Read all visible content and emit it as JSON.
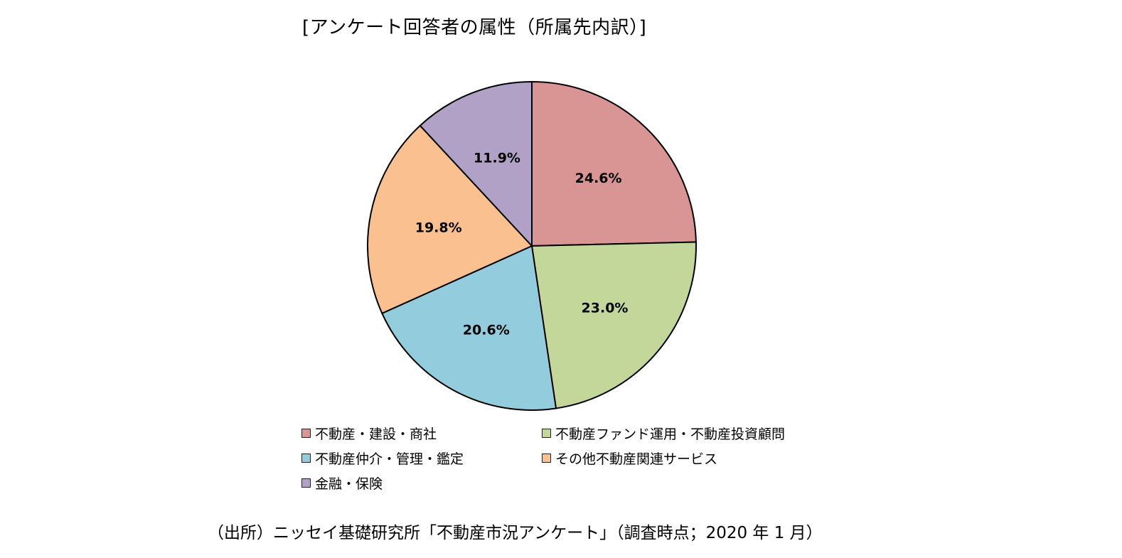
{
  "title": "[アンケート回答者の属性（所属先内訳）]",
  "source": "（出所）ニッセイ基礎研究所「不動産市況アンケート」（調査時点；2020 年 1 月）",
  "chart_data": {
    "type": "pie",
    "title": "[アンケート回答者の属性（所属先内訳）]",
    "slices": [
      {
        "name": "不動産・建設・商社",
        "value": 24.6,
        "label": "24.6%",
        "color": "#d99594"
      },
      {
        "name": "不動産ファンド運用・不動産投資顧問",
        "value": 23.0,
        "label": "23.0%",
        "color": "#c4d79b"
      },
      {
        "name": "不動産仲介・管理・鑑定",
        "value": 20.6,
        "label": "20.6%",
        "color": "#93cddd"
      },
      {
        "name": "その他不動産関連サービス",
        "value": 19.8,
        "label": "19.8%",
        "color": "#fac090"
      },
      {
        "name": "金融・保険",
        "value": 11.9,
        "label": "11.9%",
        "color": "#b2a1c7"
      }
    ],
    "legend_placement": "bottom"
  }
}
